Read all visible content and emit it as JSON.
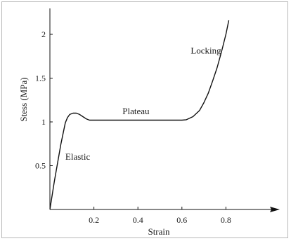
{
  "chart_data": {
    "type": "line",
    "xlabel": "Strain",
    "ylabel": "Stess (MPa)",
    "xlim": [
      0,
      1.05
    ],
    "ylim": [
      0,
      2.2
    ],
    "xticks": [
      "0.2",
      "0.4",
      "0.6",
      "0.8"
    ],
    "xtick_values": [
      0.2,
      0.4,
      0.6,
      0.8
    ],
    "yticks": [
      "0.5",
      "1",
      "1.5",
      "2"
    ],
    "ytick_values": [
      0.5,
      1,
      1.5,
      2
    ],
    "grid": false,
    "series": [
      {
        "x": [
          0,
          0.02,
          0.05,
          0.07,
          0.08,
          0.09,
          0.105,
          0.12,
          0.135,
          0.15,
          0.165,
          0.18,
          0.2,
          0.3,
          0.4,
          0.5,
          0.55,
          0.6,
          0.62,
          0.65,
          0.68,
          0.7,
          0.72,
          0.74,
          0.76,
          0.78,
          0.8,
          0.813
        ],
        "y": [
          0,
          0.32,
          0.75,
          0.99,
          1.05,
          1.085,
          1.1,
          1.1,
          1.085,
          1.06,
          1.035,
          1.02,
          1.02,
          1.02,
          1.02,
          1.02,
          1.02,
          1.02,
          1.025,
          1.06,
          1.13,
          1.22,
          1.33,
          1.47,
          1.62,
          1.8,
          2.0,
          2.16
        ]
      }
    ],
    "annotations": [
      {
        "text": "Elastic",
        "x": 0.07,
        "y": 0.57
      },
      {
        "text": "Plateau",
        "x": 0.33,
        "y": 1.09
      },
      {
        "text": "Locking",
        "x": 0.64,
        "y": 1.78
      }
    ]
  }
}
